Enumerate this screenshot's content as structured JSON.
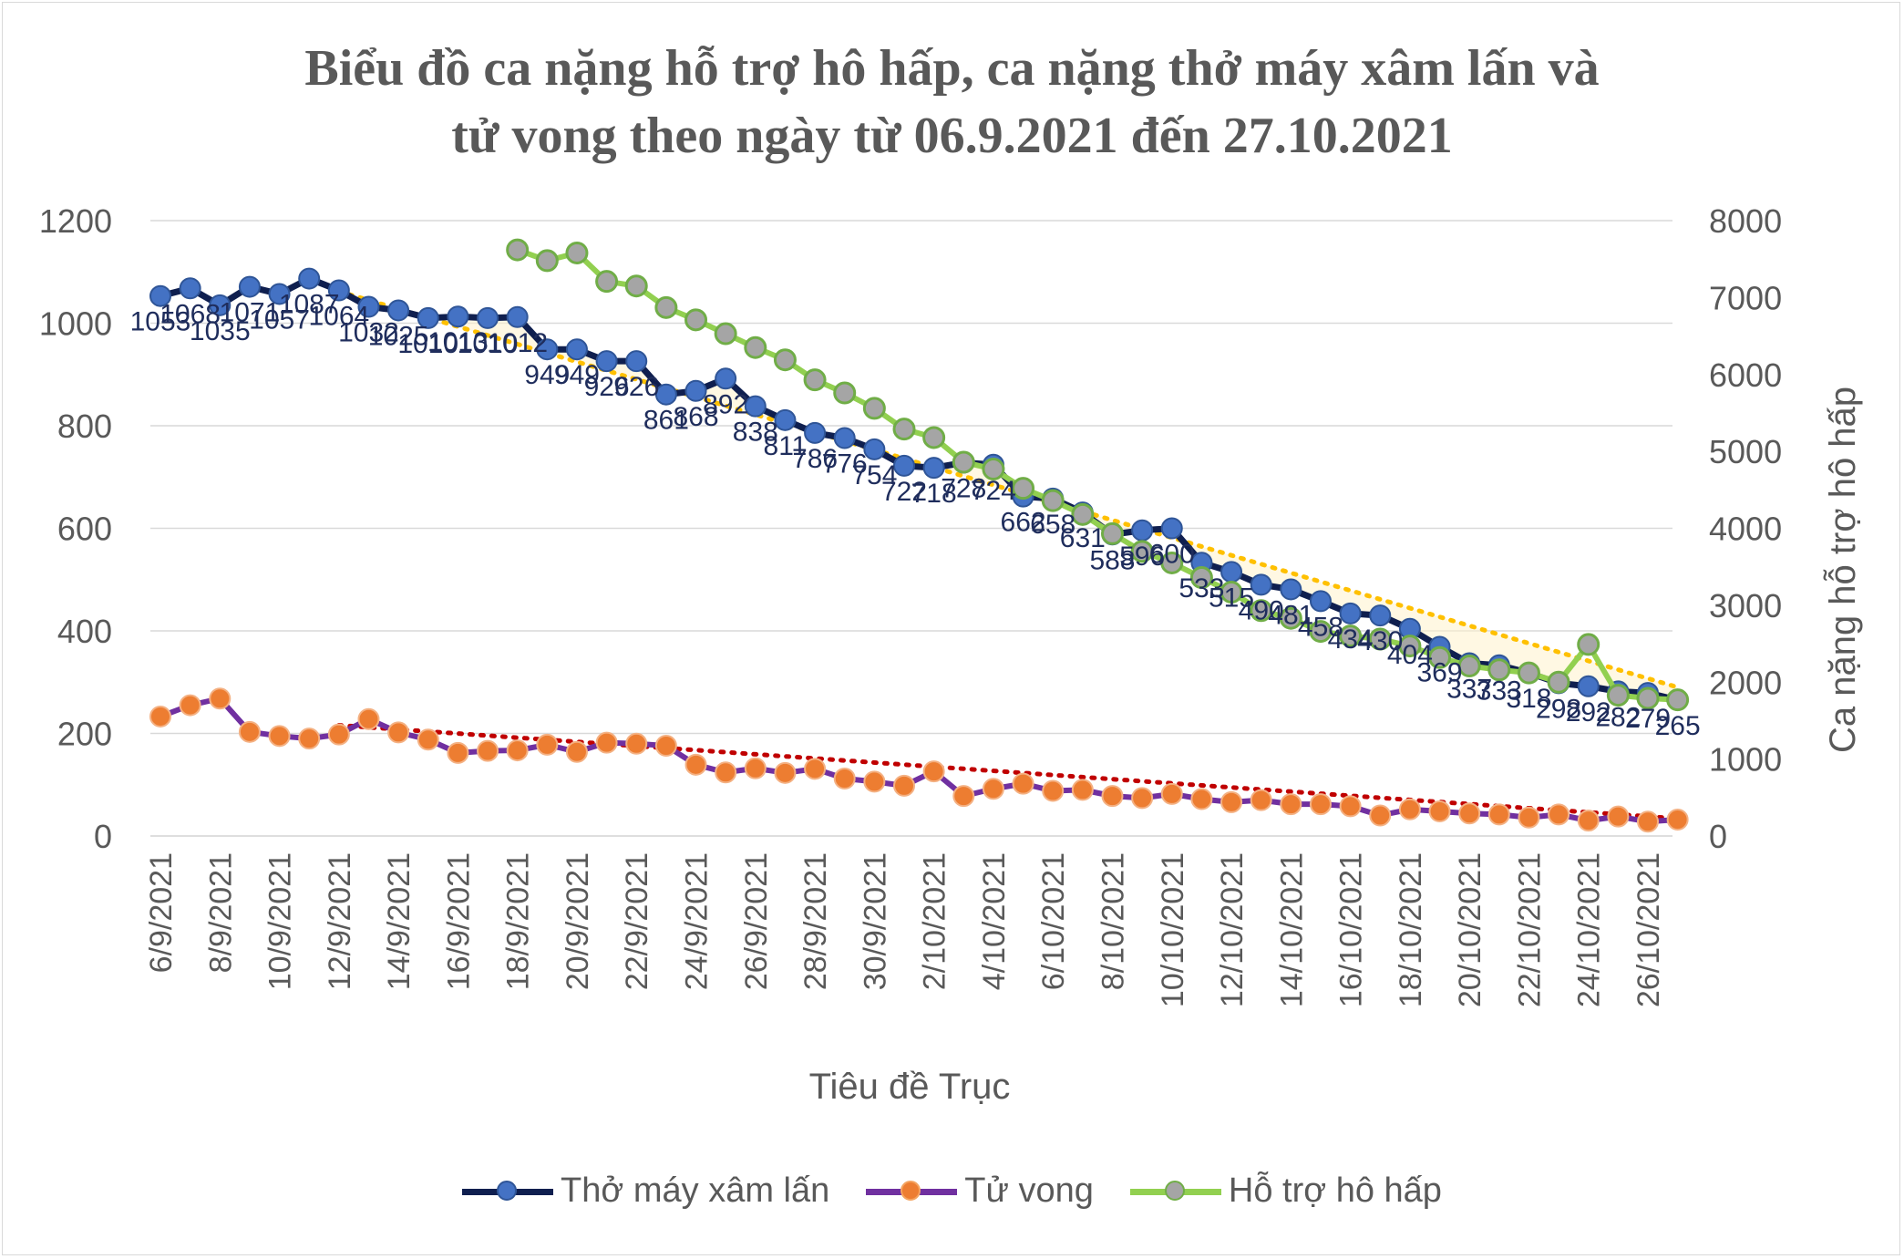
{
  "chart_data": {
    "type": "line",
    "title_lines": [
      "Biểu đồ ca nặng hỗ trợ hô hấp, ca nặng thở máy xâm lấn và",
      "tử vong theo ngày từ 06.9.2021 đến 27.10.2021"
    ],
    "xlabel": "Tiêu đề Trục",
    "ylabel": "",
    "y2label": "Ca nặng hỗ trợ hô hấp",
    "ylim": [
      0,
      1200
    ],
    "y2lim": [
      0,
      8000
    ],
    "yticks": [
      "0",
      "200",
      "400",
      "600",
      "800",
      "1000",
      "1200"
    ],
    "y2ticks": [
      "0",
      "1000",
      "2000",
      "3000",
      "4000",
      "5000",
      "6000",
      "7000",
      "8000"
    ],
    "x_tick_labels": [
      "6/9/2021",
      "8/9/2021",
      "10/9/2021",
      "12/9/2021",
      "14/9/2021",
      "16/9/2021",
      "18/9/2021",
      "20/9/2021",
      "22/9/2021",
      "24/9/2021",
      "26/9/2021",
      "28/9/2021",
      "30/9/2021",
      "2/10/2021",
      "4/10/2021",
      "6/10/2021",
      "8/10/2021",
      "10/10/2021",
      "12/10/2021",
      "14/10/2021",
      "16/10/2021",
      "18/10/2021",
      "20/10/2021",
      "22/10/2021",
      "24/10/2021",
      "26/10/2021"
    ],
    "grid": true,
    "legend_position": "bottom",
    "series": [
      {
        "name": "Thở máy xâm lấn",
        "axis": "left",
        "line_color": "#0f1f4f",
        "marker_color": "#4472c4",
        "values": [
          1053,
          1068,
          1035,
          1071,
          1057,
          1087,
          1064,
          1032,
          1025,
          1010,
          1013,
          1010,
          1012,
          949,
          949,
          926,
          926,
          861,
          868,
          892,
          838,
          811,
          786,
          776,
          754,
          722,
          718,
          728,
          724,
          662,
          658,
          631,
          588,
          596,
          600,
          533,
          515,
          490,
          481,
          458,
          434,
          430,
          404,
          369,
          337,
          333,
          318,
          298,
          292,
          282,
          279,
          265
        ],
        "labels": [
          "1053",
          "1068",
          "1035",
          "1071",
          "1057",
          "1087",
          "1064",
          "1032",
          "1025",
          "1010",
          "1013",
          "1010",
          "1012",
          "949",
          "949",
          "926",
          "926",
          "861",
          "868",
          "892",
          "838",
          "811",
          "786",
          "776",
          "754",
          "722",
          "718",
          "728",
          "724",
          "662",
          "658",
          "631",
          "588",
          "596",
          "600",
          "533",
          "515",
          "490",
          "481",
          "458",
          "434",
          "430",
          "404",
          "369",
          "337",
          "333",
          "318",
          "298",
          "292",
          "282",
          "279",
          "265"
        ]
      },
      {
        "name": "Tử vong",
        "axis": "left",
        "line_color": "#7030a0",
        "marker_color": "#ed7d31",
        "values": [
          233,
          255,
          268,
          203,
          195,
          190,
          198,
          228,
          202,
          188,
          162,
          166,
          167,
          178,
          164,
          182,
          180,
          176,
          139,
          124,
          132,
          123,
          131,
          112,
          106,
          98,
          126,
          78,
          92,
          102,
          88,
          90,
          78,
          74,
          82,
          72,
          66,
          70,
          62,
          62,
          58,
          40,
          52,
          48,
          44,
          42,
          36,
          42,
          30,
          38,
          28,
          32
        ]
      },
      {
        "name": "Hỗ trợ hô hấp",
        "axis": "right",
        "line_color": "#92d050",
        "marker_color": "#a5a5a5",
        "start_index": 12,
        "values": [
          7620,
          7480,
          7580,
          7210,
          7150,
          6870,
          6710,
          6530,
          6350,
          6190,
          5930,
          5760,
          5560,
          5290,
          5180,
          4860,
          4770,
          4520,
          4360,
          4180,
          3930,
          3700,
          3550,
          3360,
          3170,
          2930,
          2830,
          2660,
          2600,
          2560,
          2470,
          2320,
          2210,
          2160,
          2120,
          2000,
          2490,
          1830,
          1790,
          1770
        ]
      }
    ],
    "trendlines": [
      {
        "series": "Thở máy xâm lấn",
        "color": "#ffc000",
        "from_index": 6,
        "to_index": 51,
        "from_value": 1062,
        "to_value": 290
      },
      {
        "series": "Tử vong",
        "color": "#c00000",
        "from_index": 6,
        "to_index": 51,
        "from_value": 216,
        "to_value": 34
      }
    ]
  }
}
